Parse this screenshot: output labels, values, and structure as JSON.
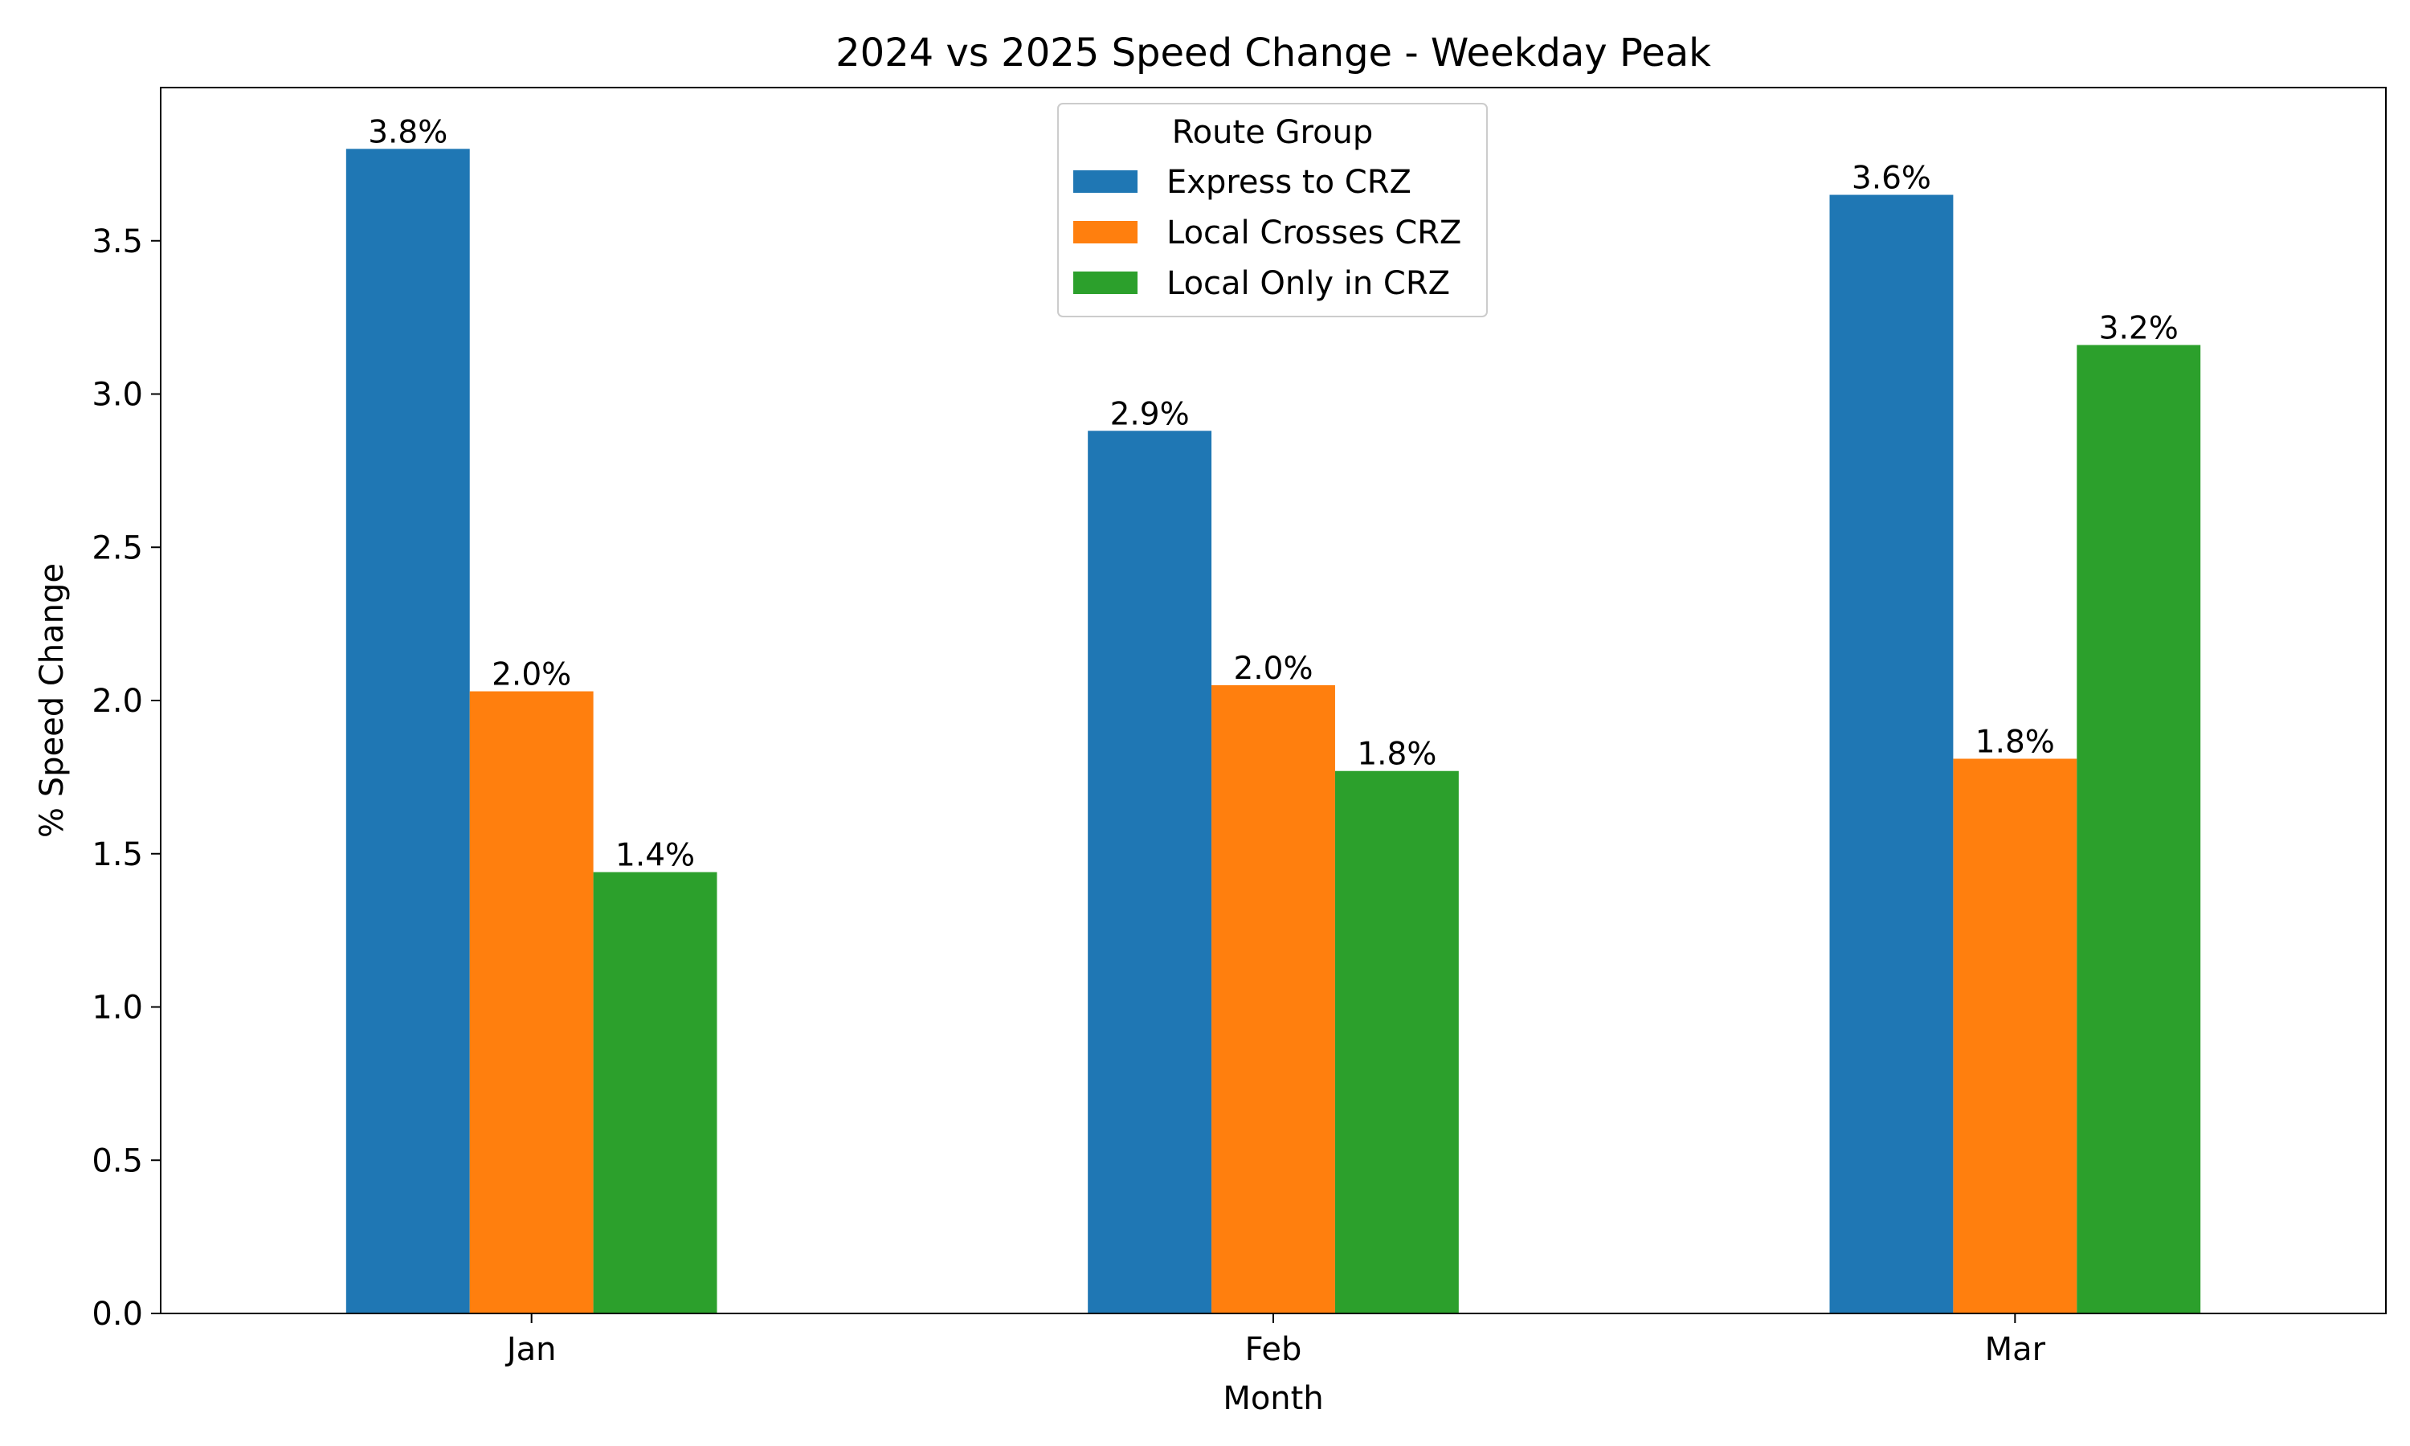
{
  "chart_data": {
    "type": "bar",
    "title": "2024 vs 2025 Speed Change - Weekday Peak",
    "xlabel": "Month",
    "ylabel": "% Speed Change",
    "categories": [
      "Jan",
      "Feb",
      "Mar"
    ],
    "series": [
      {
        "name": "Express to CRZ",
        "color": "#1f77b4",
        "values": [
          3.8,
          2.88,
          3.65
        ],
        "labels": [
          "3.8%",
          "2.9%",
          "3.6%"
        ]
      },
      {
        "name": "Local Crosses CRZ",
        "color": "#ff7f0e",
        "values": [
          2.03,
          2.05,
          1.81
        ],
        "labels": [
          "2.0%",
          "2.0%",
          "1.8%"
        ]
      },
      {
        "name": "Local Only in CRZ",
        "color": "#2ca02c",
        "values": [
          1.44,
          1.77,
          3.16
        ],
        "labels": [
          "1.4%",
          "1.8%",
          "3.2%"
        ]
      }
    ],
    "ylim": [
      0,
      4.0
    ],
    "yticks": [
      0.0,
      0.5,
      1.0,
      1.5,
      2.0,
      2.5,
      3.0,
      3.5
    ],
    "ytick_labels": [
      "0.0",
      "0.5",
      "1.0",
      "1.5",
      "2.0",
      "2.5",
      "3.0",
      "3.5"
    ],
    "grid": false,
    "zero_line": "dashed",
    "legend": {
      "title": "Route Group",
      "placement": "top-center"
    }
  }
}
